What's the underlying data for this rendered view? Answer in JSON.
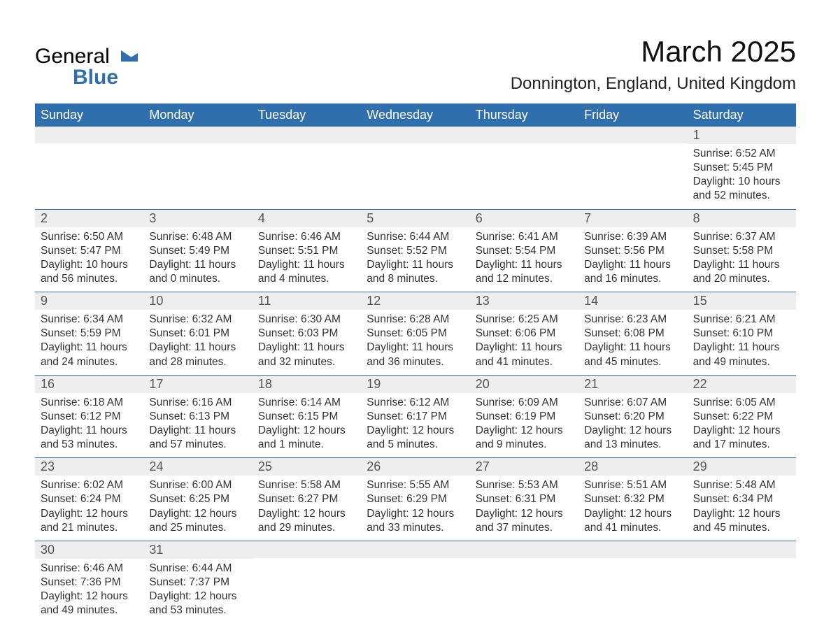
{
  "brand": {
    "name_part1": "General",
    "name_part2": "Blue",
    "logo_color": "#2f6fad"
  },
  "header": {
    "month_title": "March 2025",
    "location": "Donnington, England, United Kingdom"
  },
  "colors": {
    "header_bg": "#2f6fad",
    "header_text": "#ffffff",
    "daynum_bg": "#eeeeee",
    "border": "#2f6fad",
    "text": "#333333"
  },
  "weekdays": [
    "Sunday",
    "Monday",
    "Tuesday",
    "Wednesday",
    "Thursday",
    "Friday",
    "Saturday"
  ],
  "labels": {
    "sunrise": "Sunrise:",
    "sunset": "Sunset:",
    "daylight": "Daylight:"
  },
  "weeks": [
    [
      {
        "blank": true
      },
      {
        "blank": true
      },
      {
        "blank": true
      },
      {
        "blank": true
      },
      {
        "blank": true
      },
      {
        "blank": true
      },
      {
        "day": "1",
        "sunrise": "6:52 AM",
        "sunset": "5:45 PM",
        "daylight": "10 hours and 52 minutes."
      }
    ],
    [
      {
        "day": "2",
        "sunrise": "6:50 AM",
        "sunset": "5:47 PM",
        "daylight": "10 hours and 56 minutes."
      },
      {
        "day": "3",
        "sunrise": "6:48 AM",
        "sunset": "5:49 PM",
        "daylight": "11 hours and 0 minutes."
      },
      {
        "day": "4",
        "sunrise": "6:46 AM",
        "sunset": "5:51 PM",
        "daylight": "11 hours and 4 minutes."
      },
      {
        "day": "5",
        "sunrise": "6:44 AM",
        "sunset": "5:52 PM",
        "daylight": "11 hours and 8 minutes."
      },
      {
        "day": "6",
        "sunrise": "6:41 AM",
        "sunset": "5:54 PM",
        "daylight": "11 hours and 12 minutes."
      },
      {
        "day": "7",
        "sunrise": "6:39 AM",
        "sunset": "5:56 PM",
        "daylight": "11 hours and 16 minutes."
      },
      {
        "day": "8",
        "sunrise": "6:37 AM",
        "sunset": "5:58 PM",
        "daylight": "11 hours and 20 minutes."
      }
    ],
    [
      {
        "day": "9",
        "sunrise": "6:34 AM",
        "sunset": "5:59 PM",
        "daylight": "11 hours and 24 minutes."
      },
      {
        "day": "10",
        "sunrise": "6:32 AM",
        "sunset": "6:01 PM",
        "daylight": "11 hours and 28 minutes."
      },
      {
        "day": "11",
        "sunrise": "6:30 AM",
        "sunset": "6:03 PM",
        "daylight": "11 hours and 32 minutes."
      },
      {
        "day": "12",
        "sunrise": "6:28 AM",
        "sunset": "6:05 PM",
        "daylight": "11 hours and 36 minutes."
      },
      {
        "day": "13",
        "sunrise": "6:25 AM",
        "sunset": "6:06 PM",
        "daylight": "11 hours and 41 minutes."
      },
      {
        "day": "14",
        "sunrise": "6:23 AM",
        "sunset": "6:08 PM",
        "daylight": "11 hours and 45 minutes."
      },
      {
        "day": "15",
        "sunrise": "6:21 AM",
        "sunset": "6:10 PM",
        "daylight": "11 hours and 49 minutes."
      }
    ],
    [
      {
        "day": "16",
        "sunrise": "6:18 AM",
        "sunset": "6:12 PM",
        "daylight": "11 hours and 53 minutes."
      },
      {
        "day": "17",
        "sunrise": "6:16 AM",
        "sunset": "6:13 PM",
        "daylight": "11 hours and 57 minutes."
      },
      {
        "day": "18",
        "sunrise": "6:14 AM",
        "sunset": "6:15 PM",
        "daylight": "12 hours and 1 minute."
      },
      {
        "day": "19",
        "sunrise": "6:12 AM",
        "sunset": "6:17 PM",
        "daylight": "12 hours and 5 minutes."
      },
      {
        "day": "20",
        "sunrise": "6:09 AM",
        "sunset": "6:19 PM",
        "daylight": "12 hours and 9 minutes."
      },
      {
        "day": "21",
        "sunrise": "6:07 AM",
        "sunset": "6:20 PM",
        "daylight": "12 hours and 13 minutes."
      },
      {
        "day": "22",
        "sunrise": "6:05 AM",
        "sunset": "6:22 PM",
        "daylight": "12 hours and 17 minutes."
      }
    ],
    [
      {
        "day": "23",
        "sunrise": "6:02 AM",
        "sunset": "6:24 PM",
        "daylight": "12 hours and 21 minutes."
      },
      {
        "day": "24",
        "sunrise": "6:00 AM",
        "sunset": "6:25 PM",
        "daylight": "12 hours and 25 minutes."
      },
      {
        "day": "25",
        "sunrise": "5:58 AM",
        "sunset": "6:27 PM",
        "daylight": "12 hours and 29 minutes."
      },
      {
        "day": "26",
        "sunrise": "5:55 AM",
        "sunset": "6:29 PM",
        "daylight": "12 hours and 33 minutes."
      },
      {
        "day": "27",
        "sunrise": "5:53 AM",
        "sunset": "6:31 PM",
        "daylight": "12 hours and 37 minutes."
      },
      {
        "day": "28",
        "sunrise": "5:51 AM",
        "sunset": "6:32 PM",
        "daylight": "12 hours and 41 minutes."
      },
      {
        "day": "29",
        "sunrise": "5:48 AM",
        "sunset": "6:34 PM",
        "daylight": "12 hours and 45 minutes."
      }
    ],
    [
      {
        "day": "30",
        "sunrise": "6:46 AM",
        "sunset": "7:36 PM",
        "daylight": "12 hours and 49 minutes."
      },
      {
        "day": "31",
        "sunrise": "6:44 AM",
        "sunset": "7:37 PM",
        "daylight": "12 hours and 53 minutes."
      },
      {
        "blank": true
      },
      {
        "blank": true
      },
      {
        "blank": true
      },
      {
        "blank": true
      },
      {
        "blank": true
      }
    ]
  ]
}
